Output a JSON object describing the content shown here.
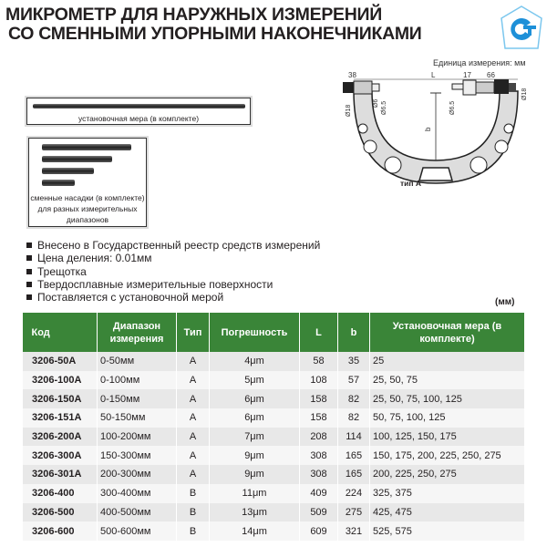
{
  "title": {
    "line1": "МИКРОМЕТР ДЛЯ НАРУЖНЫХ ИЗМЕРЕНИЙ",
    "line2": "СО СМЕННЫМИ УПОРНЫМИ НАКОНЕЧНИКАМИ"
  },
  "logo": {
    "icon": "gost-certification-logo",
    "color": "#1e90d8"
  },
  "drawing": {
    "unit_note": "Единица измерения: мм",
    "dims": {
      "left": "38",
      "L": "L",
      "right1": "17",
      "right2": "66",
      "d18_left": "Ø18",
      "d6": "Ø6",
      "d65_left": "Ø6.5",
      "d65_right": "Ø6.5",
      "d18_right": "Ø18",
      "b": "b"
    },
    "caption": "тип A"
  },
  "accessories": {
    "setting_rod": "установочная мера (в комплекте)",
    "anvils": "сменные насадки (в комплекте) для разных измерительных диапазонов"
  },
  "features": [
    "Внесено в Государственный реестр средств измерений",
    "Цена деления: 0.01мм",
    "Трещотка",
    "Твердосплавные измерительные поверхности",
    "Поставляется с установочной мерой"
  ],
  "units": "(мм)",
  "table": {
    "header_color": "#3a8538",
    "headers": [
      "Код",
      "Диапазон измерения",
      "Тип",
      "Погрешность",
      "L",
      "b",
      "Установочная мера (в комплекте)"
    ],
    "rows": [
      [
        "3206-50A",
        "0-50мм",
        "A",
        "4μm",
        "58",
        "35",
        "25"
      ],
      [
        "3206-100A",
        "0-100мм",
        "A",
        "5μm",
        "108",
        "57",
        "25, 50, 75"
      ],
      [
        "3206-150A",
        "0-150мм",
        "A",
        "6μm",
        "158",
        "82",
        "25, 50, 75, 100, 125"
      ],
      [
        "3206-151A",
        "50-150мм",
        "A",
        "6μm",
        "158",
        "82",
        "50, 75, 100, 125"
      ],
      [
        "3206-200A",
        "100-200мм",
        "A",
        "7μm",
        "208",
        "114",
        "100, 125, 150, 175"
      ],
      [
        "3206-300A",
        "150-300мм",
        "A",
        "9μm",
        "308",
        "165",
        "150, 175, 200, 225, 250, 275"
      ],
      [
        "3206-301A",
        "200-300мм",
        "A",
        "9μm",
        "308",
        "165",
        "200, 225, 250, 275"
      ],
      [
        "3206-400",
        "300-400мм",
        "B",
        "11μm",
        "409",
        "224",
        "325, 375"
      ],
      [
        "3206-500",
        "400-500мм",
        "B",
        "13μm",
        "509",
        "275",
        "425, 475"
      ],
      [
        "3206-600",
        "500-600мм",
        "B",
        "14μm",
        "609",
        "321",
        "525, 575"
      ]
    ]
  }
}
